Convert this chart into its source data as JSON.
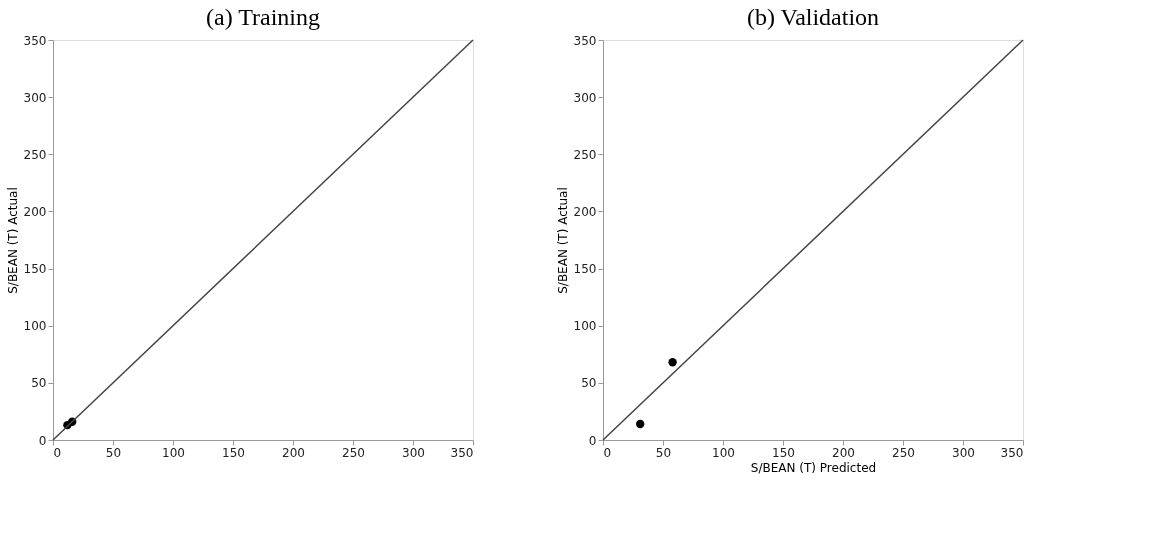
{
  "chart_data": [
    {
      "type": "scatter",
      "title": "(a) Training",
      "ylabel": "S/BEAN (T) Actual",
      "xlim": [
        0,
        350
      ],
      "ylim": [
        0,
        350
      ],
      "xticks": [
        0,
        50,
        100,
        150,
        200,
        250,
        300,
        350
      ],
      "yticks": [
        0,
        50,
        100,
        150,
        200,
        250,
        300,
        350
      ],
      "grid": false,
      "marker": "circle",
      "series": [
        {
          "color": "#000000",
          "x": [
            12,
            16
          ],
          "values": [
            13,
            16
          ]
        },
        {
          "type": "line",
          "color": "#444444",
          "line_style": "solid",
          "marker": "none",
          "x": [
            0,
            350
          ],
          "values": [
            0,
            350
          ]
        }
      ]
    },
    {
      "type": "scatter",
      "title": "(b) Validation",
      "xlabel": "S/BEAN (T) Predicted",
      "ylabel": "S/BEAN (T) Actual",
      "xlim": [
        0,
        350
      ],
      "ylim": [
        0,
        350
      ],
      "xticks": [
        0,
        50,
        100,
        150,
        200,
        250,
        300,
        350
      ],
      "yticks": [
        0,
        50,
        100,
        150,
        200,
        250,
        300,
        350
      ],
      "grid": false,
      "marker": "circle",
      "series": [
        {
          "color": "#000000",
          "x": [
            31,
            58
          ],
          "values": [
            14,
            68
          ]
        },
        {
          "type": "line",
          "color": "#444444",
          "line_style": "solid",
          "marker": "none",
          "x": [
            0,
            350
          ],
          "values": [
            0,
            350
          ]
        }
      ]
    }
  ]
}
